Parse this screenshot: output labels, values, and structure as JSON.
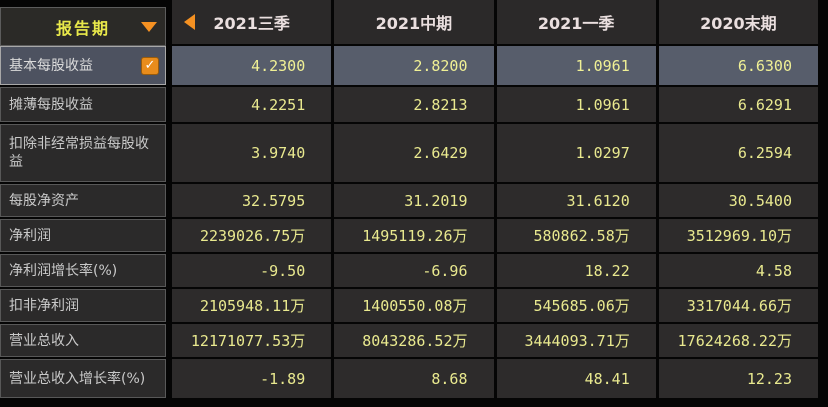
{
  "sidebar": {
    "header": {
      "label": "报告期"
    },
    "items": [
      {
        "label": "基本每股收益",
        "checked": true
      },
      {
        "label": "摊薄每股收益"
      },
      {
        "label": "扣除非经常损益每股收益"
      },
      {
        "label": "每股净资产"
      },
      {
        "label": "净利润"
      },
      {
        "label": "净利润增长率(%)"
      },
      {
        "label": "扣非净利润"
      },
      {
        "label": "营业总收入"
      },
      {
        "label": "营业总收入增长率(%)"
      }
    ]
  },
  "table": {
    "columns": [
      "2021三季",
      "2021中期",
      "2021一季",
      "2020末期"
    ],
    "rows": [
      {
        "metric": "基本每股收益",
        "highlighted": true,
        "values": [
          "4.2300",
          "2.8200",
          "1.0961",
          "6.6300"
        ]
      },
      {
        "metric": "摊薄每股收益",
        "values": [
          "4.2251",
          "2.8213",
          "1.0961",
          "6.6291"
        ]
      },
      {
        "metric": "扣除非经常损益每股收益",
        "values": [
          "3.9740",
          "2.6429",
          "1.0297",
          "6.2594"
        ]
      },
      {
        "metric": "每股净资产",
        "values": [
          "32.5795",
          "31.2019",
          "31.6120",
          "30.5400"
        ]
      },
      {
        "metric": "净利润",
        "values": [
          "2239026.75万",
          "1495119.26万",
          "580862.58万",
          "3512969.10万"
        ]
      },
      {
        "metric": "净利润增长率(%)",
        "values": [
          "-9.50",
          "-6.96",
          "18.22",
          "4.58"
        ]
      },
      {
        "metric": "扣非净利润",
        "values": [
          "2105948.11万",
          "1400550.08万",
          "545685.06万",
          "3317044.66万"
        ]
      },
      {
        "metric": "营业总收入",
        "values": [
          "12171077.53万",
          "8043286.52万",
          "3444093.71万",
          "17624268.22万"
        ]
      },
      {
        "metric": "营业总收入增长率(%)",
        "values": [
          "-1.89",
          "8.68",
          "48.41",
          "12.23"
        ]
      }
    ]
  },
  "icons": {
    "checkbox_check": "✓",
    "dropdown_arrow": "down-triangle",
    "prev_period_arrow": "left-triangle"
  },
  "colors": {
    "accent_orange": "#f59122",
    "value_yellow": "#e9e98f",
    "header_label_yellow": "#e8e84a",
    "highlight_row": "#575d6b",
    "row_background": "#2d2b2b"
  }
}
